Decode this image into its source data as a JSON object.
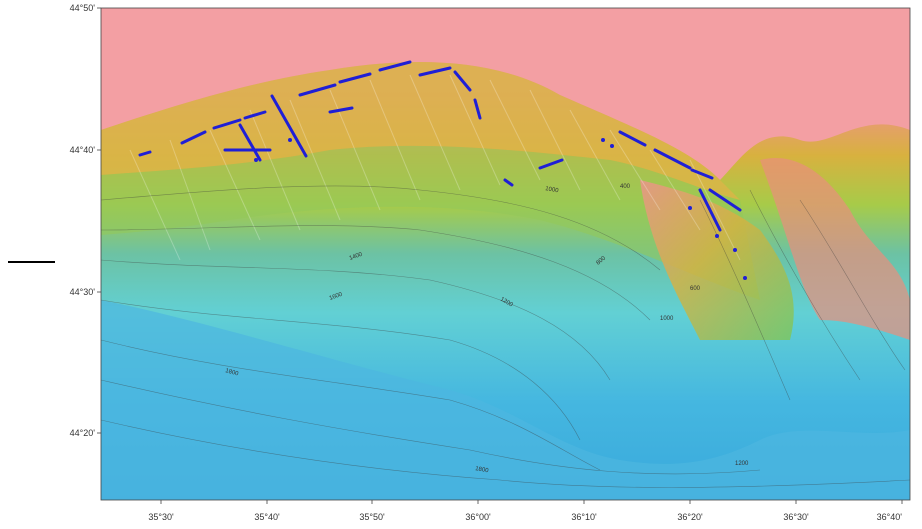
{
  "map": {
    "axes": {
      "x_ticks": [
        "35°30'",
        "35°40'",
        "35°50'",
        "36°00'",
        "36°10'",
        "36°20'",
        "36°30'",
        "36°40'"
      ],
      "y_ticks": [
        "44°50'",
        "44°40'",
        "44°30'",
        "44°20'"
      ]
    },
    "contour_labels": [
      "1400",
      "1600",
      "1800",
      "1000",
      "1200",
      "400",
      "800",
      "1000",
      "600",
      "1200",
      "1800"
    ],
    "colors": {
      "deep": "#39a9dc",
      "mid_deep": "#62d0cc",
      "mid": "#7cc75a",
      "shallow": "#d9bf3e",
      "shelf": "#e07a56",
      "land": "#f19a9e",
      "tracks": "#1f1fd6"
    },
    "legend_mark": true
  }
}
